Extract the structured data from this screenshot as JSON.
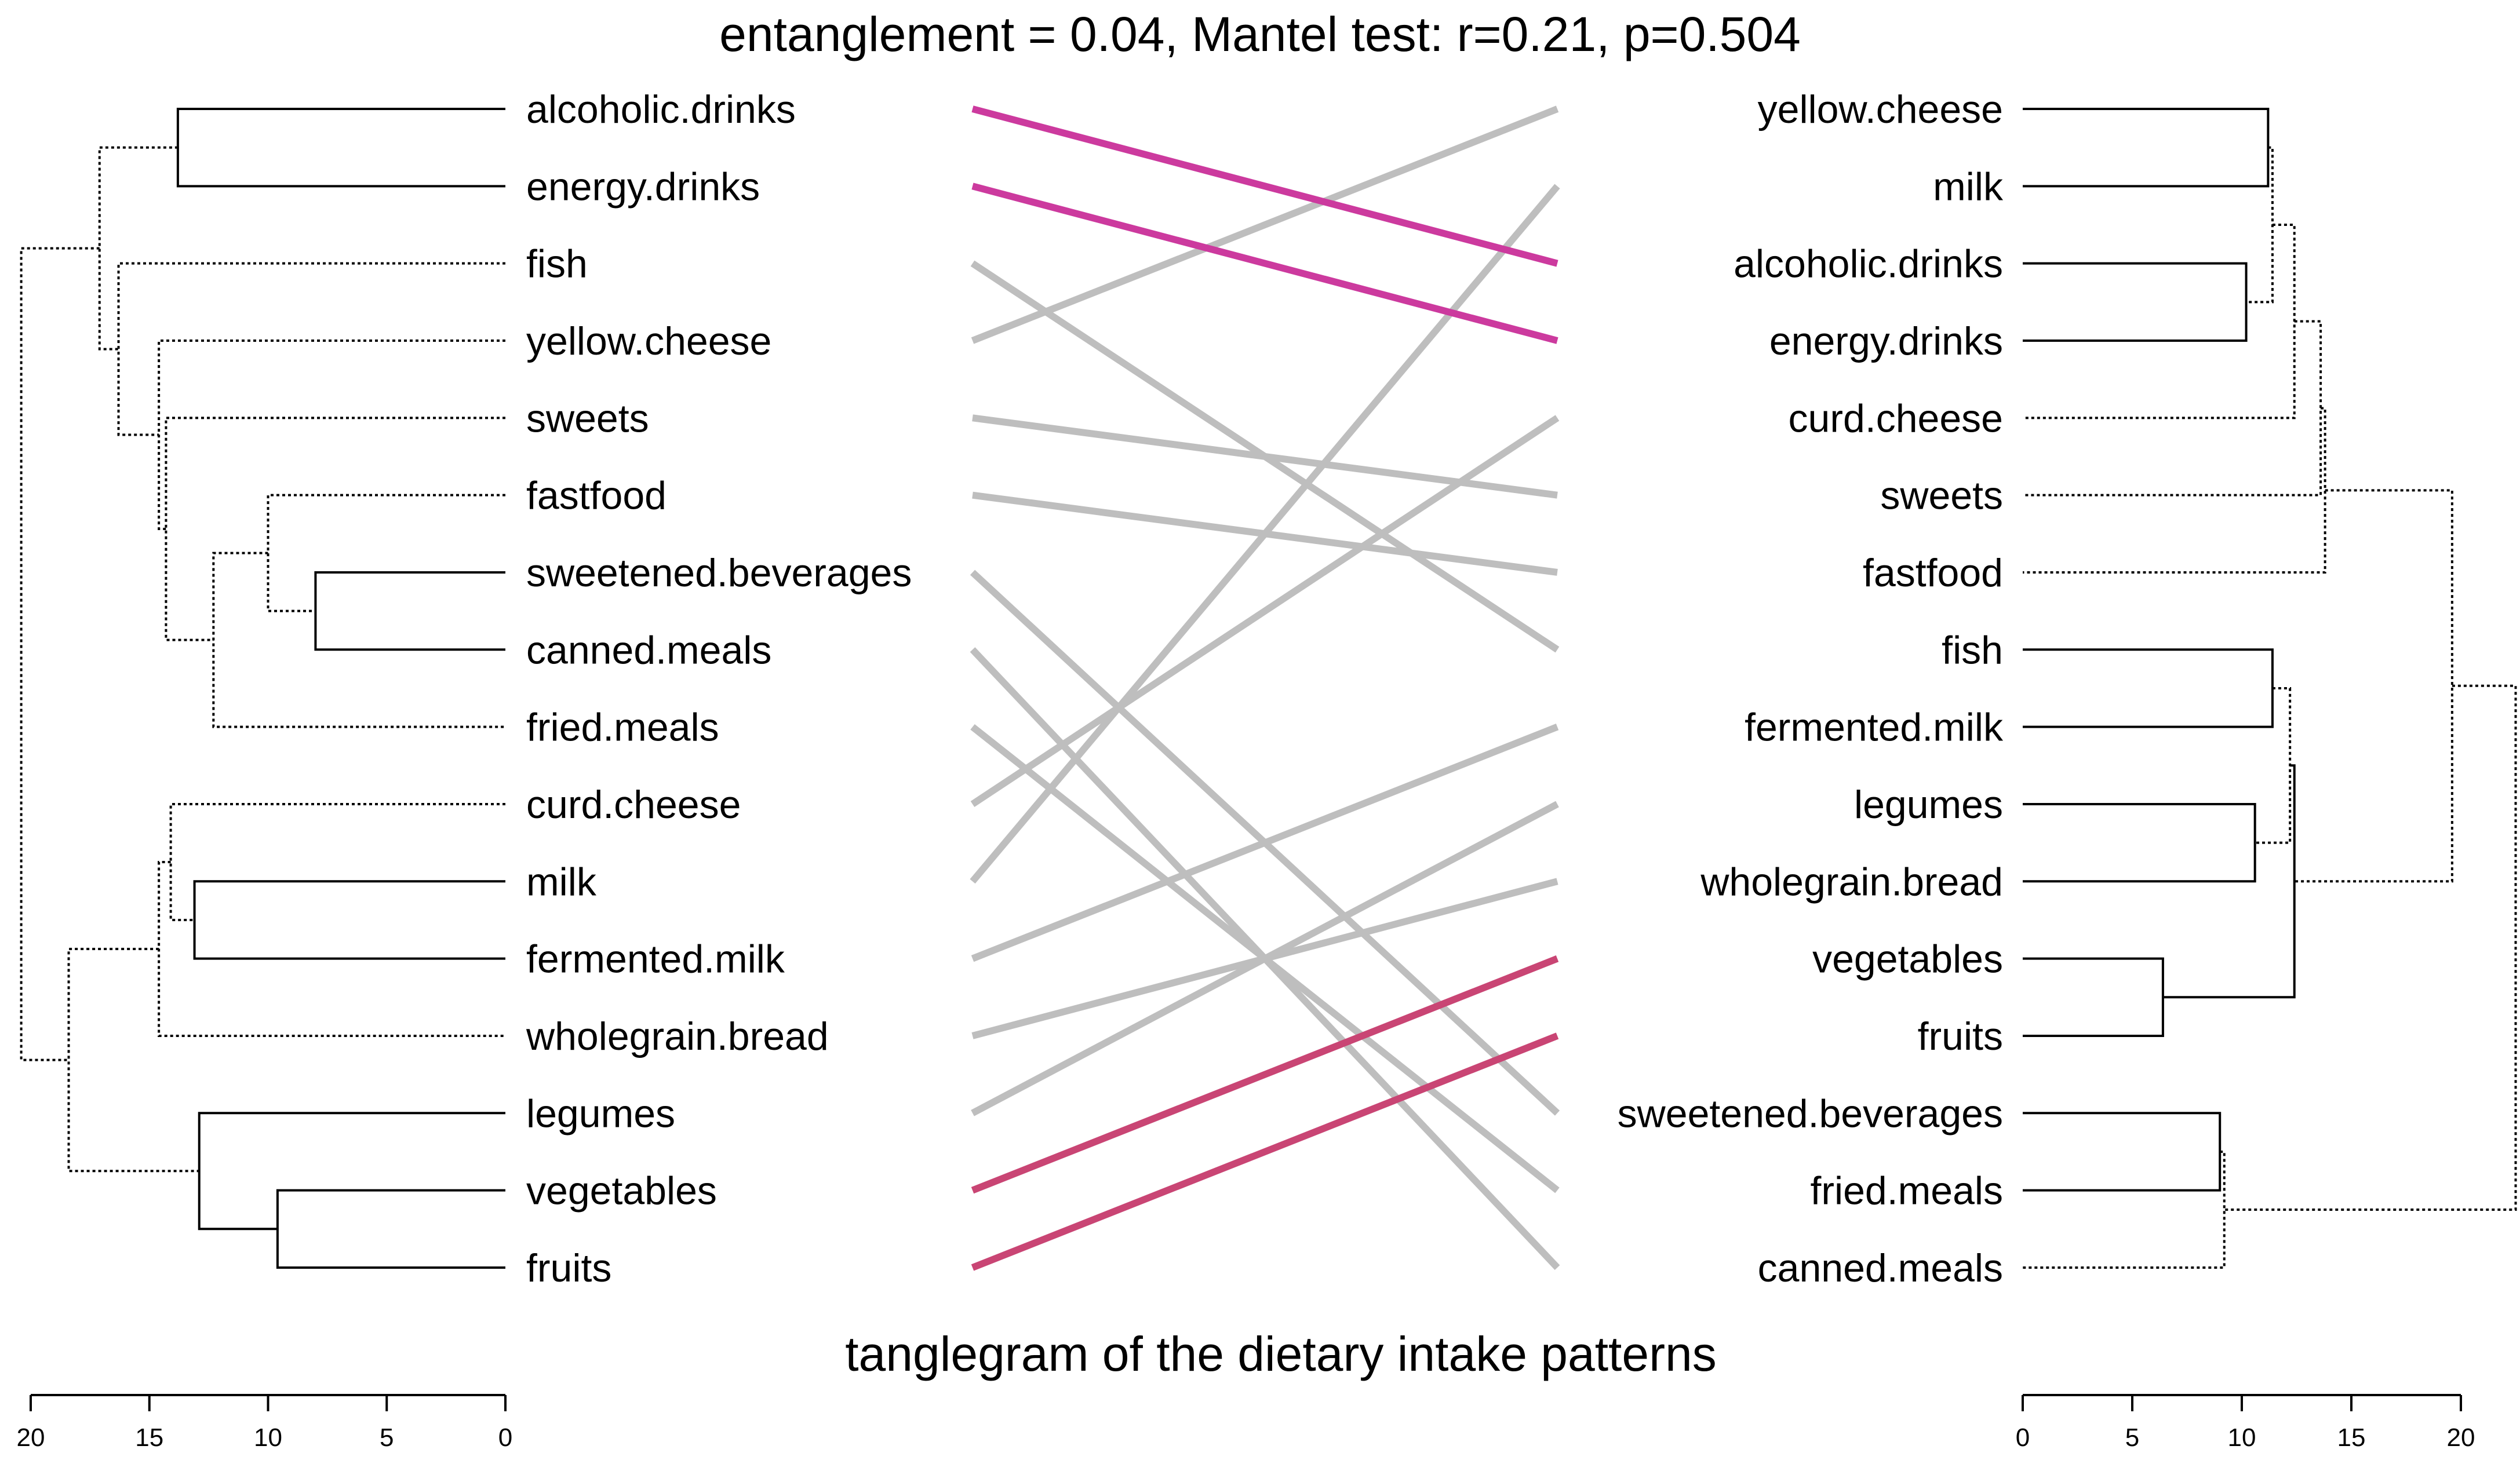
{
  "chart_data": {
    "type": "tanglegram",
    "title": "entanglement = 0.04, Mantel test: r=0.21, p=0.504",
    "subtitle": "tanglegram of the dietary intake patterns",
    "left_labels": [
      "alcoholic.drinks",
      "energy.drinks",
      "fish",
      "yellow.cheese",
      "sweets",
      "fastfood",
      "sweetened.beverages",
      "canned.meals",
      "fried.meals",
      "curd.cheese",
      "milk",
      "fermented.milk",
      "wholegrain.bread",
      "legumes",
      "vegetables",
      "fruits"
    ],
    "right_labels": [
      "yellow.cheese",
      "milk",
      "alcoholic.drinks",
      "energy.drinks",
      "curd.cheese",
      "sweets",
      "fastfood",
      "fish",
      "fermented.milk",
      "legumes",
      "wholegrain.bread",
      "vegetables",
      "fruits",
      "sweetened.beverages",
      "fried.meals",
      "canned.meals"
    ],
    "left_axis": {
      "range": [
        20,
        0
      ],
      "ticks": [
        20,
        15,
        10,
        5,
        0
      ]
    },
    "right_axis": {
      "range": [
        0,
        20
      ],
      "ticks": [
        0,
        5,
        10,
        15,
        20
      ]
    },
    "left_tree": [
      {
        "a": "alcoholic.drinks",
        "b": "energy.drinks",
        "h": 13.8,
        "dotted": false
      },
      {
        "a": "sweetened.beverages",
        "b": "canned.meals",
        "h": 8.0,
        "dotted": false
      },
      {
        "a": "fastfood",
        "b": 1,
        "h": 10.0,
        "dotted": true
      },
      {
        "a": 2,
        "b": "fried.meals",
        "h": 12.3,
        "dotted": true
      },
      {
        "a": "sweets",
        "b": 3,
        "h": 14.3,
        "dotted": true
      },
      {
        "a": "yellow.cheese",
        "b": 4,
        "h": 14.6,
        "dotted": true
      },
      {
        "a": "fish",
        "b": 5,
        "h": 16.3,
        "dotted": true
      },
      {
        "a": 0,
        "b": 6,
        "h": 17.1,
        "dotted": true
      },
      {
        "a": "milk",
        "b": "fermented.milk",
        "h": 13.1,
        "dotted": false
      },
      {
        "a": "curd.cheese",
        "b": 8,
        "h": 14.1,
        "dotted": true
      },
      {
        "a": 9,
        "b": "wholegrain.bread",
        "h": 14.6,
        "dotted": true
      },
      {
        "a": "vegetables",
        "b": "fruits",
        "h": 9.6,
        "dotted": false
      },
      {
        "a": "legumes",
        "b": 11,
        "h": 12.9,
        "dotted": false
      },
      {
        "a": 10,
        "b": 12,
        "h": 18.4,
        "dotted": true
      },
      {
        "a": 7,
        "b": 13,
        "h": 20.4,
        "dotted": true
      }
    ],
    "right_tree": [
      {
        "a": "yellow.cheese",
        "b": "milk",
        "h": 11.2,
        "dotted": false
      },
      {
        "a": "alcoholic.drinks",
        "b": "energy.drinks",
        "h": 10.2,
        "dotted": false
      },
      {
        "a": 0,
        "b": 1,
        "h": 11.4,
        "dotted": true
      },
      {
        "a": 2,
        "b": "curd.cheese",
        "h": 12.4,
        "dotted": true
      },
      {
        "a": 3,
        "b": "sweets",
        "h": 13.6,
        "dotted": true
      },
      {
        "a": 4,
        "b": "fastfood",
        "h": 13.8,
        "dotted": true
      },
      {
        "a": "fish",
        "b": "fermented.milk",
        "h": 11.4,
        "dotted": false
      },
      {
        "a": "legumes",
        "b": "wholegrain.bread",
        "h": 10.6,
        "dotted": false
      },
      {
        "a": 6,
        "b": 7,
        "h": 12.2,
        "dotted": true
      },
      {
        "a": "vegetables",
        "b": "fruits",
        "h": 6.4,
        "dotted": false
      },
      {
        "a": 8,
        "b": 9,
        "h": 12.4,
        "dotted": false
      },
      {
        "a": 5,
        "b": 10,
        "h": 19.6,
        "dotted": true
      },
      {
        "a": "sweetened.beverages",
        "b": "fried.meals",
        "h": 9.0,
        "dotted": false
      },
      {
        "a": 12,
        "b": "canned.meals",
        "h": 9.2,
        "dotted": true
      },
      {
        "a": 11,
        "b": 13,
        "h": 22.5,
        "dotted": true
      }
    ],
    "connections": [
      {
        "from": "alcoholic.drinks",
        "to": "alcoholic.drinks",
        "color": "#cc3a9e"
      },
      {
        "from": "energy.drinks",
        "to": "energy.drinks",
        "color": "#cc3a9e"
      },
      {
        "from": "fish",
        "to": "fish",
        "color": "#bebebe"
      },
      {
        "from": "yellow.cheese",
        "to": "yellow.cheese",
        "color": "#bebebe"
      },
      {
        "from": "sweets",
        "to": "sweets",
        "color": "#bebebe"
      },
      {
        "from": "fastfood",
        "to": "fastfood",
        "color": "#bebebe"
      },
      {
        "from": "sweetened.beverages",
        "to": "sweetened.beverages",
        "color": "#bebebe"
      },
      {
        "from": "canned.meals",
        "to": "canned.meals",
        "color": "#bebebe"
      },
      {
        "from": "fried.meals",
        "to": "fried.meals",
        "color": "#bebebe"
      },
      {
        "from": "curd.cheese",
        "to": "curd.cheese",
        "color": "#bebebe"
      },
      {
        "from": "milk",
        "to": "milk",
        "color": "#bebebe"
      },
      {
        "from": "fermented.milk",
        "to": "fermented.milk",
        "color": "#bebebe"
      },
      {
        "from": "wholegrain.bread",
        "to": "wholegrain.bread",
        "color": "#bebebe"
      },
      {
        "from": "legumes",
        "to": "legumes",
        "color": "#bebebe"
      },
      {
        "from": "vegetables",
        "to": "vegetables",
        "color": "#c94574"
      },
      {
        "from": "fruits",
        "to": "fruits",
        "color": "#c94574"
      }
    ]
  }
}
